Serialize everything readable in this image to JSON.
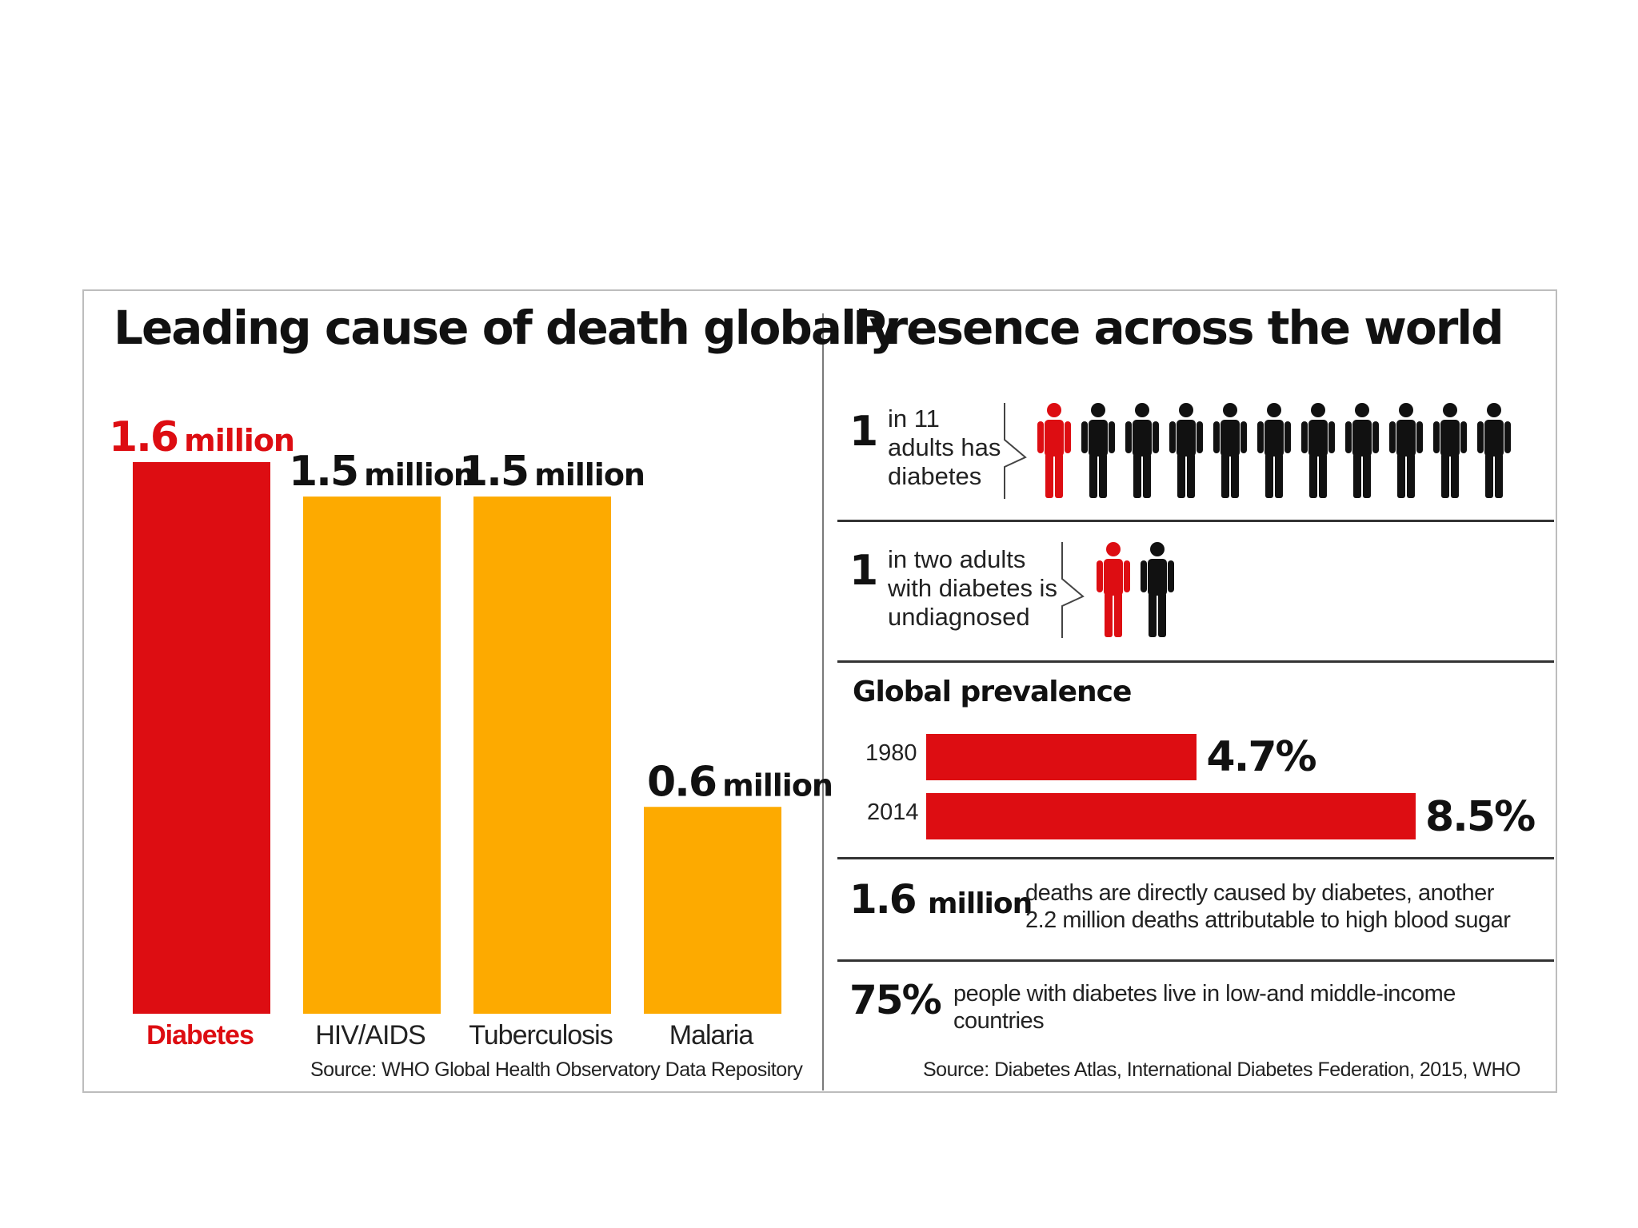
{
  "left_panel": {
    "title": "Leading cause of death globally",
    "source": "Source: WHO Global Health Observatory Data Repository"
  },
  "chart_data": {
    "type": "bar",
    "title": "Leading cause of death globally",
    "categories": [
      "Diabetes",
      "HIV/AIDS",
      "Tuberculosis",
      "Malaria"
    ],
    "values": [
      1.6,
      1.5,
      1.5,
      0.6
    ],
    "unit": "million",
    "value_labels": [
      "1.6",
      "1.5",
      "1.5",
      "0.6"
    ],
    "colors": [
      "#dd0d12",
      "#fdaa00",
      "#fdaa00",
      "#fdaa00"
    ],
    "highlight_label_color": "#dd0d12",
    "ylim": [
      0,
      1.6
    ],
    "grid": false
  },
  "right_panel": {
    "title": "Presence across the world",
    "stat1": {
      "number": "1",
      "lines": [
        "in 11",
        "adults has",
        "diabetes"
      ],
      "people_total": 11,
      "people_highlighted": 1
    },
    "stat2": {
      "number": "1",
      "lines": [
        "in two adults",
        "with diabetes is",
        "undiagnosed"
      ],
      "people_total": 2,
      "people_highlighted": 1
    },
    "prevalence": {
      "title": "Global prevalence",
      "rows": [
        {
          "year": "1980",
          "value": 4.7,
          "label": "4.7%"
        },
        {
          "year": "2014",
          "value": 8.5,
          "label": "8.5%"
        }
      ],
      "bar_color": "#dd0d12"
    },
    "stat3": {
      "big": "1.6",
      "unit": "million",
      "lines": [
        "deaths are directly caused by diabetes, another",
        "2.2 million deaths attributable to high blood sugar"
      ]
    },
    "stat4": {
      "big": "75%",
      "lines": [
        "people with diabetes live in low-and middle-income",
        "countries"
      ]
    },
    "source": "Source: Diabetes Atlas, International Diabetes Federation, 2015, WHO",
    "person_colors": {
      "highlight": "#dd0d12",
      "default": "#111111"
    }
  }
}
